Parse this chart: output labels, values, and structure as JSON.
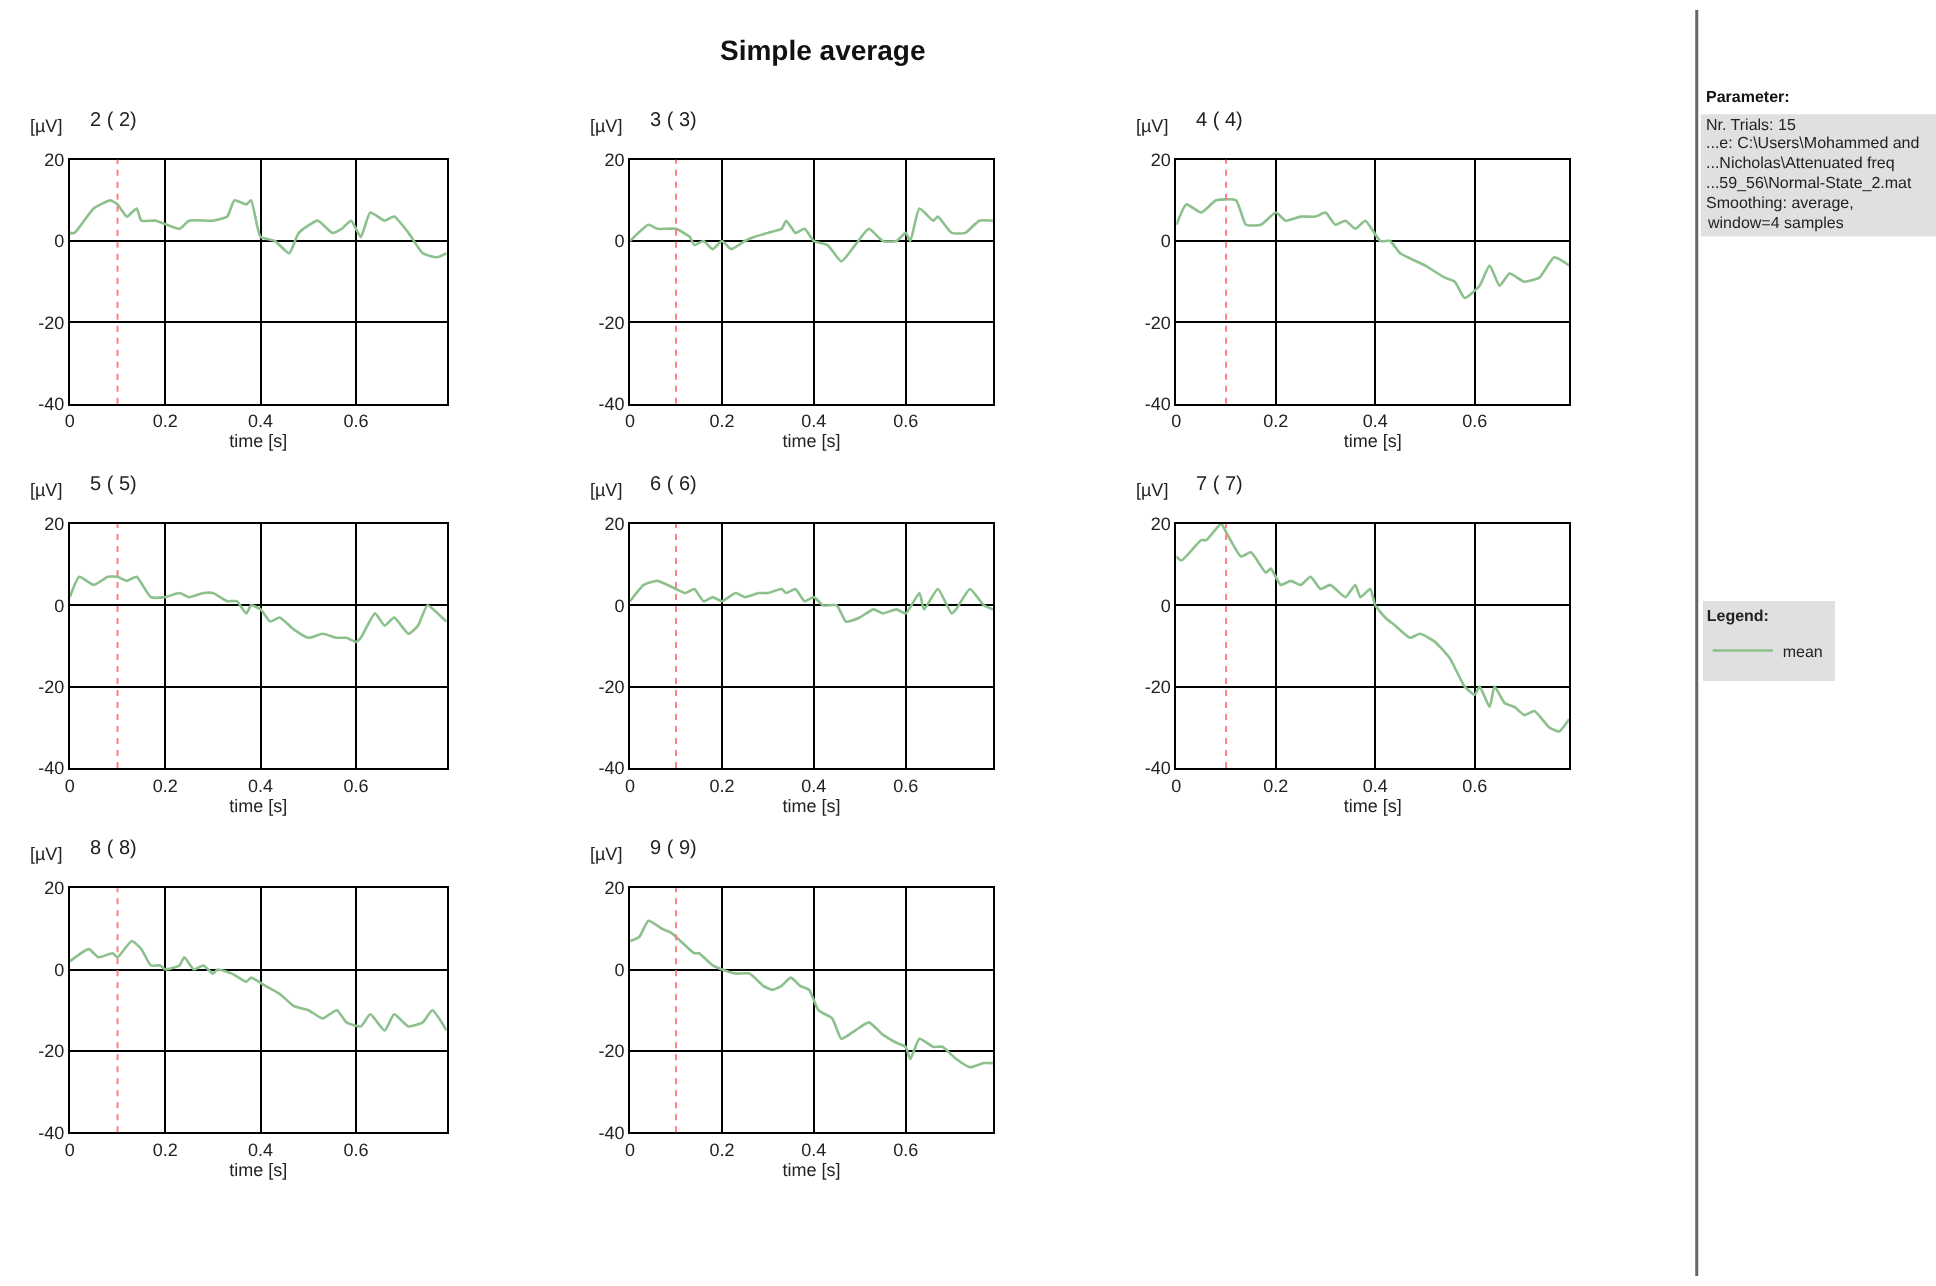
{
  "chart_data": [
    {
      "type": "other",
      "title": "Simple average"
    },
    {
      "type": "line",
      "title": "2 ( 2)",
      "xlabel": "time [s]",
      "ylabel": "[µV]",
      "xlim": [
        0,
        0.79
      ],
      "ylim": [
        -40,
        20
      ],
      "xticks": [
        0,
        0.2,
        0.4,
        0.6
      ],
      "yticks": [
        -40,
        -20,
        0,
        20
      ],
      "grid": true,
      "legend": "right",
      "ref_lines": [
        {
          "axis": "x",
          "value": 0.1,
          "color": "#ff8080",
          "line_style": "dotted"
        }
      ],
      "series": [
        {
          "name": "mean",
          "color": "#8cc08c",
          "x": [
            0,
            0.01,
            0.05,
            0.085,
            0.1,
            0.12,
            0.14,
            0.15,
            0.18,
            0.23,
            0.25,
            0.3,
            0.33,
            0.345,
            0.37,
            0.38,
            0.4,
            0.43,
            0.46,
            0.48,
            0.52,
            0.55,
            0.57,
            0.59,
            0.61,
            0.63,
            0.66,
            0.68,
            0.71,
            0.74,
            0.77,
            0.79
          ],
          "values": [
            2,
            2,
            8,
            10,
            9,
            6,
            8,
            5,
            5,
            3,
            5,
            5,
            6,
            10,
            9,
            10,
            1,
            0,
            -3,
            2,
            5,
            2,
            3,
            5,
            1,
            7,
            5,
            6,
            2,
            -3,
            -4,
            -3
          ]
        }
      ]
    },
    {
      "type": "line",
      "title": "3 ( 3)",
      "xlabel": "time [s]",
      "ylabel": "[µV]",
      "xlim": [
        0,
        0.79
      ],
      "ylim": [
        -40,
        20
      ],
      "xticks": [
        0,
        0.2,
        0.4,
        0.6
      ],
      "yticks": [
        -40,
        -20,
        0,
        20
      ],
      "grid": true,
      "legend": "right",
      "ref_lines": [
        {
          "axis": "x",
          "value": 0.1,
          "color": "#ff8080",
          "line_style": "dotted"
        }
      ],
      "series": [
        {
          "name": "mean",
          "color": "#8cc08c",
          "x": [
            0,
            0.04,
            0.06,
            0.1,
            0.13,
            0.14,
            0.16,
            0.18,
            0.2,
            0.22,
            0.25,
            0.27,
            0.3,
            0.33,
            0.34,
            0.36,
            0.38,
            0.4,
            0.43,
            0.46,
            0.49,
            0.52,
            0.55,
            0.58,
            0.6,
            0.61,
            0.63,
            0.66,
            0.67,
            0.7,
            0.73,
            0.76,
            0.79
          ],
          "values": [
            0,
            4,
            3,
            3,
            1,
            -1,
            0,
            -2,
            0,
            -2,
            0,
            1,
            2,
            3,
            5,
            2,
            3,
            0,
            -1,
            -5,
            -1,
            3,
            0,
            0,
            2,
            0,
            8,
            5,
            6,
            2,
            2,
            5,
            5
          ]
        }
      ]
    },
    {
      "type": "line",
      "title": "4 ( 4)",
      "xlabel": "time [s]",
      "ylabel": "[µV]",
      "xlim": [
        0,
        0.79
      ],
      "ylim": [
        -40,
        20
      ],
      "xticks": [
        0,
        0.2,
        0.4,
        0.6
      ],
      "yticks": [
        -40,
        -20,
        0,
        20
      ],
      "grid": true,
      "legend": "right",
      "ref_lines": [
        {
          "axis": "x",
          "value": 0.1,
          "color": "#ff8080",
          "line_style": "dotted"
        }
      ],
      "series": [
        {
          "name": "mean",
          "color": "#8cc08c",
          "x": [
            0,
            0.02,
            0.05,
            0.08,
            0.12,
            0.14,
            0.17,
            0.2,
            0.22,
            0.25,
            0.28,
            0.3,
            0.32,
            0.34,
            0.36,
            0.38,
            0.41,
            0.43,
            0.45,
            0.5,
            0.54,
            0.56,
            0.58,
            0.61,
            0.63,
            0.65,
            0.67,
            0.7,
            0.73,
            0.76,
            0.79
          ],
          "values": [
            4,
            9,
            7,
            10,
            10,
            4,
            4,
            7,
            5,
            6,
            6,
            7,
            4,
            5,
            3,
            5,
            0,
            0,
            -3,
            -6,
            -9,
            -10,
            -14,
            -11,
            -6,
            -11,
            -8,
            -10,
            -9,
            -4,
            -6
          ]
        }
      ]
    },
    {
      "type": "line",
      "title": "5 ( 5)",
      "xlabel": "time [s]",
      "ylabel": "[µV]",
      "xlim": [
        0,
        0.79
      ],
      "ylim": [
        -40,
        20
      ],
      "xticks": [
        0,
        0.2,
        0.4,
        0.6
      ],
      "yticks": [
        -40,
        -20,
        0,
        20
      ],
      "grid": true,
      "legend": "right",
      "ref_lines": [
        {
          "axis": "x",
          "value": 0.1,
          "color": "#ff8080",
          "line_style": "dotted"
        }
      ],
      "series": [
        {
          "name": "mean",
          "color": "#8cc08c",
          "x": [
            0,
            0.02,
            0.05,
            0.08,
            0.1,
            0.12,
            0.14,
            0.17,
            0.2,
            0.23,
            0.25,
            0.28,
            0.3,
            0.33,
            0.35,
            0.37,
            0.38,
            0.4,
            0.42,
            0.44,
            0.47,
            0.5,
            0.53,
            0.56,
            0.58,
            0.6,
            0.61,
            0.64,
            0.66,
            0.68,
            0.71,
            0.73,
            0.75,
            0.78,
            0.79
          ],
          "values": [
            2,
            7,
            5,
            7,
            7,
            6,
            7,
            2,
            2,
            3,
            2,
            3,
            3,
            1,
            1,
            -2,
            0,
            -1,
            -4,
            -3,
            -6,
            -8,
            -7,
            -8,
            -8,
            -9,
            -8,
            -2,
            -5,
            -3,
            -7,
            -5,
            0,
            -3,
            -4
          ]
        }
      ]
    },
    {
      "type": "line",
      "title": "6 ( 6)",
      "xlabel": "time [s]",
      "ylabel": "[µV]",
      "xlim": [
        0,
        0.79
      ],
      "ylim": [
        -40,
        20
      ],
      "xticks": [
        0,
        0.2,
        0.4,
        0.6
      ],
      "yticks": [
        -40,
        -20,
        0,
        20
      ],
      "grid": true,
      "legend": "right",
      "ref_lines": [
        {
          "axis": "x",
          "value": 0.1,
          "color": "#ff8080",
          "line_style": "dotted"
        }
      ],
      "series": [
        {
          "name": "mean",
          "color": "#8cc08c",
          "x": [
            0,
            0.03,
            0.06,
            0.1,
            0.12,
            0.14,
            0.16,
            0.18,
            0.2,
            0.23,
            0.25,
            0.28,
            0.3,
            0.33,
            0.34,
            0.36,
            0.38,
            0.4,
            0.42,
            0.45,
            0.47,
            0.5,
            0.53,
            0.55,
            0.58,
            0.6,
            0.63,
            0.64,
            0.67,
            0.7,
            0.71,
            0.74,
            0.77,
            0.79
          ],
          "values": [
            1,
            5,
            6,
            4,
            3,
            4,
            1,
            2,
            1,
            3,
            2,
            3,
            3,
            4,
            3,
            4,
            1,
            2,
            0,
            0,
            -4,
            -3,
            -1,
            -2,
            -1,
            -2,
            3,
            -1,
            4,
            -2,
            -1,
            4,
            0,
            -1
          ]
        }
      ]
    },
    {
      "type": "line",
      "title": "7 ( 7)",
      "xlabel": "time [s]",
      "ylabel": "[µV]",
      "xlim": [
        0,
        0.79
      ],
      "ylim": [
        -40,
        20
      ],
      "xticks": [
        0,
        0.2,
        0.4,
        0.6
      ],
      "yticks": [
        -40,
        -20,
        0,
        20
      ],
      "grid": true,
      "legend": "right",
      "ref_lines": [
        {
          "axis": "x",
          "value": 0.1,
          "color": "#ff8080",
          "line_style": "dotted"
        }
      ],
      "series": [
        {
          "name": "mean",
          "color": "#8cc08c",
          "x": [
            0,
            0.01,
            0.05,
            0.06,
            0.09,
            0.1,
            0.13,
            0.15,
            0.18,
            0.19,
            0.21,
            0.23,
            0.25,
            0.27,
            0.29,
            0.31,
            0.34,
            0.36,
            0.37,
            0.39,
            0.4,
            0.42,
            0.44,
            0.47,
            0.49,
            0.52,
            0.55,
            0.58,
            0.6,
            0.61,
            0.63,
            0.64,
            0.66,
            0.68,
            0.7,
            0.72,
            0.75,
            0.77,
            0.79
          ],
          "values": [
            12,
            11,
            16,
            16,
            20,
            18,
            12,
            13,
            8,
            9,
            5,
            6,
            5,
            7,
            4,
            5,
            2,
            5,
            2,
            4,
            0,
            -3,
            -5,
            -8,
            -7,
            -9,
            -13,
            -20,
            -22,
            -20,
            -25,
            -20,
            -24,
            -25,
            -27,
            -26,
            -30,
            -31,
            -28
          ]
        }
      ]
    },
    {
      "type": "line",
      "title": "8 ( 8)",
      "xlabel": "time [s]",
      "ylabel": "[µV]",
      "xlim": [
        0,
        0.79
      ],
      "ylim": [
        -40,
        20
      ],
      "xticks": [
        0,
        0.2,
        0.4,
        0.6
      ],
      "yticks": [
        -40,
        -20,
        0,
        20
      ],
      "grid": true,
      "legend": "right",
      "ref_lines": [
        {
          "axis": "x",
          "value": 0.1,
          "color": "#ff8080",
          "line_style": "dotted"
        }
      ],
      "series": [
        {
          "name": "mean",
          "color": "#8cc08c",
          "x": [
            0,
            0.04,
            0.06,
            0.09,
            0.1,
            0.13,
            0.15,
            0.17,
            0.19,
            0.2,
            0.23,
            0.24,
            0.26,
            0.28,
            0.3,
            0.31,
            0.34,
            0.37,
            0.38,
            0.41,
            0.44,
            0.47,
            0.5,
            0.53,
            0.56,
            0.58,
            0.61,
            0.63,
            0.66,
            0.68,
            0.71,
            0.74,
            0.76,
            0.79
          ],
          "values": [
            2,
            5,
            3,
            4,
            3,
            7,
            5,
            1,
            1,
            0,
            1,
            3,
            0,
            1,
            -1,
            0,
            -1,
            -3,
            -2,
            -4,
            -6,
            -9,
            -10,
            -12,
            -10,
            -13,
            -14,
            -11,
            -15,
            -11,
            -14,
            -13,
            -10,
            -15
          ]
        }
      ]
    },
    {
      "type": "line",
      "title": "9 ( 9)",
      "xlabel": "time [s]",
      "ylabel": "[µV]",
      "xlim": [
        0,
        0.79
      ],
      "ylim": [
        -40,
        20
      ],
      "xticks": [
        0,
        0.2,
        0.4,
        0.6
      ],
      "yticks": [
        -40,
        -20,
        0,
        20
      ],
      "grid": true,
      "legend": "right",
      "legend_title": "Legend:",
      "ref_lines": [
        {
          "axis": "x",
          "value": 0.1,
          "color": "#ff8080",
          "line_style": "dotted"
        }
      ],
      "series": [
        {
          "name": "mean",
          "color": "#8cc08c",
          "x": [
            0,
            0.02,
            0.04,
            0.07,
            0.09,
            0.11,
            0.14,
            0.15,
            0.18,
            0.2,
            0.23,
            0.26,
            0.29,
            0.31,
            0.33,
            0.35,
            0.37,
            0.39,
            0.41,
            0.44,
            0.46,
            0.49,
            0.52,
            0.55,
            0.58,
            0.6,
            0.61,
            0.63,
            0.66,
            0.68,
            0.71,
            0.74,
            0.77,
            0.79
          ],
          "values": [
            7,
            8,
            12,
            10,
            9,
            7,
            4,
            4,
            1,
            0,
            -1,
            -1,
            -4,
            -5,
            -4,
            -2,
            -4,
            -5,
            -10,
            -12,
            -17,
            -15,
            -13,
            -16,
            -18,
            -19,
            -22,
            -17,
            -19,
            -19,
            -22,
            -24,
            -23,
            -23
          ]
        }
      ]
    },
    {
      "type": "other",
      "title": "Parameter:",
      "annotations": [
        "Nr. Trials: 15",
        "...e: C:\\Users\\Mohammed and",
        "...Nicholas\\Attenuated freq",
        "...59_56\\Normal-State_2.mat",
        "Smoothing: average,",
        "window=4 samples"
      ]
    }
  ]
}
